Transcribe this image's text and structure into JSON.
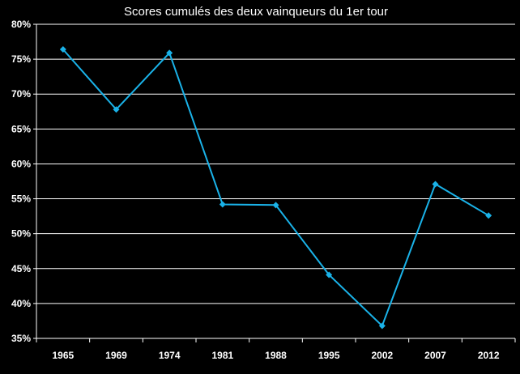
{
  "chart_data": {
    "type": "line",
    "title": "Scores cumulés des deux vainqueurs du 1er tour",
    "xlabel": "",
    "ylabel": "",
    "categories": [
      "1965",
      "1969",
      "1974",
      "1981",
      "1988",
      "1995",
      "2002",
      "2007",
      "2012"
    ],
    "series": [
      {
        "values": [
          76.4,
          67.8,
          75.9,
          54.2,
          54.1,
          44.1,
          36.8,
          57.1,
          52.6
        ]
      }
    ],
    "ylim": [
      35,
      80
    ],
    "yticks": [
      35,
      40,
      45,
      50,
      55,
      60,
      65,
      70,
      75,
      80
    ],
    "ytick_labels": [
      "35%",
      "40%",
      "45%",
      "50%",
      "55%",
      "60%",
      "65%",
      "70%",
      "75%",
      "80%"
    ],
    "grid": true,
    "legend": "none",
    "colors": {
      "background": "#000000",
      "line": "#1ab2e8",
      "grid": "#ffffff",
      "text": "#ffffff"
    }
  }
}
